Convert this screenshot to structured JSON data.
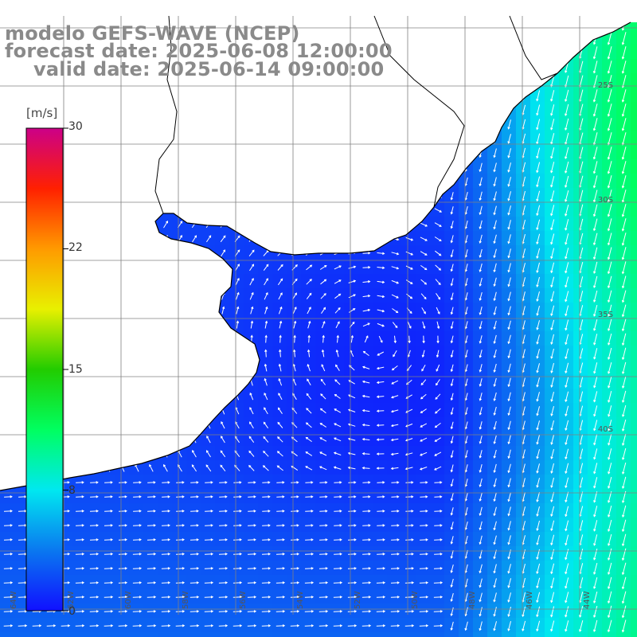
{
  "titles": {
    "model": "modelo GEFS-WAVE (NCEP)",
    "forecast": "forecast date: 2025-06-08 12:00:00",
    "valid": "valid date: 2025-06-14 09:00:00"
  },
  "legend": {
    "unit": "[m/s]",
    "ticks": [
      "30",
      "22",
      "15",
      "8",
      "0"
    ],
    "range": [
      0,
      30
    ],
    "colors": [
      "#1010ff",
      "#0a78f0",
      "#00e8f0",
      "#00ff60",
      "#22cc00",
      "#e8f000",
      "#ff9a00",
      "#ff2000",
      "#cc0088"
    ]
  },
  "map": {
    "lon_labels": [
      "64W",
      "62W",
      "60W",
      "58W",
      "56W",
      "54W",
      "52W",
      "50W",
      "48W",
      "46W",
      "44W"
    ],
    "lat_labels": [
      "25S",
      "30S",
      "35S",
      "40S"
    ],
    "colors": {
      "land": "#ffffff",
      "coast": "#000000",
      "grid": "#808080",
      "arrow": "#ffffff"
    }
  }
}
